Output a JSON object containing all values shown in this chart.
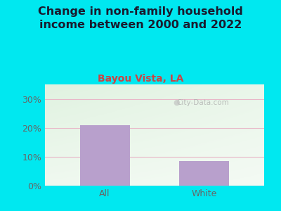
{
  "title": "Change in non-family household\nincome between 2000 and 2022",
  "subtitle": "Bayou Vista, LA",
  "categories": [
    "All",
    "White"
  ],
  "values": [
    21,
    8.5
  ],
  "bar_color": "#b8a0cc",
  "title_color": "#1a1a2e",
  "subtitle_color": "#cc4444",
  "ylim": [
    0,
    35
  ],
  "yticks": [
    0,
    10,
    20,
    30
  ],
  "ytick_labels": [
    "0%",
    "10%",
    "20%",
    "30%"
  ],
  "background_outer": "#00e8f0",
  "grid_color": "#e8b8c8",
  "watermark": "City-Data.com",
  "title_fontsize": 11.5,
  "subtitle_fontsize": 10,
  "tick_fontsize": 9,
  "tick_color": "#666666"
}
